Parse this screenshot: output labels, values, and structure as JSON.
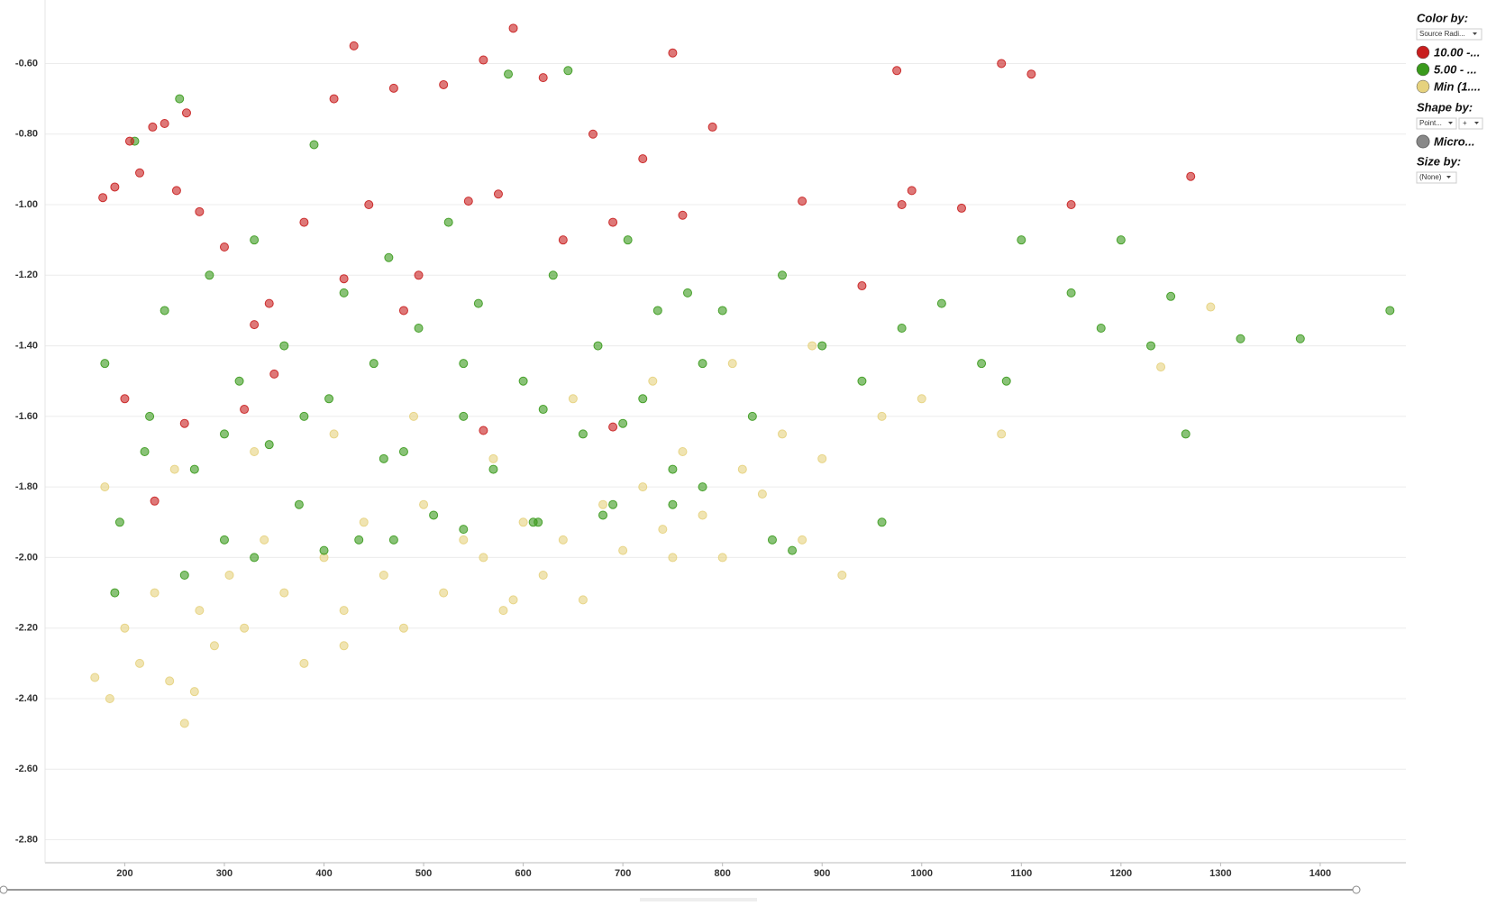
{
  "chart_data": {
    "type": "scatter",
    "xlim": [
      120,
      1486
    ],
    "xticks": [
      200,
      300,
      400,
      500,
      600,
      700,
      800,
      900,
      1000,
      1100,
      1200,
      1300,
      1400
    ],
    "ylim": [
      -2.865,
      -0.42
    ],
    "yticks": [
      {
        "value": -0.6,
        "label": "-0.60"
      },
      {
        "value": -0.8,
        "label": "-0.80"
      },
      {
        "value": -1.0,
        "label": "-1.00"
      },
      {
        "value": -1.2,
        "label": "-1.20"
      },
      {
        "value": -1.4,
        "label": "-1.40"
      },
      {
        "value": -1.6,
        "label": "-1.60"
      },
      {
        "value": -1.8,
        "label": "-1.80"
      },
      {
        "value": -2.0,
        "label": "-2.00"
      },
      {
        "value": -2.2,
        "label": "-2.20"
      },
      {
        "value": -2.4,
        "label": "-2.40"
      },
      {
        "value": -2.6,
        "label": "-2.60"
      },
      {
        "value": -2.8,
        "label": "-2.80"
      }
    ],
    "grid": true,
    "series": [
      {
        "name": "10.00 -...",
        "color": "#c81e1e",
        "x": [
          178,
          190,
          205,
          215,
          228,
          240,
          252,
          262,
          275,
          300,
          330,
          345,
          380,
          410,
          430,
          445,
          470,
          495,
          520,
          545,
          560,
          575,
          590,
          620,
          640,
          670,
          690,
          720,
          750,
          760,
          790,
          880,
          940,
          975,
          980,
          990,
          1040,
          1080,
          1110,
          1150,
          1270,
          200,
          260,
          350,
          420,
          480,
          560,
          690,
          230,
          320
        ],
        "values": [
          -0.98,
          -0.95,
          -0.82,
          -0.91,
          -0.78,
          -0.77,
          -0.96,
          -0.74,
          -1.02,
          -1.12,
          -1.34,
          -1.28,
          -1.05,
          -0.7,
          -0.55,
          -1.0,
          -0.67,
          -1.2,
          -0.66,
          -0.99,
          -0.59,
          -0.97,
          -0.5,
          -0.64,
          -1.1,
          -0.8,
          -1.05,
          -0.87,
          -0.57,
          -1.03,
          -0.78,
          -0.99,
          -1.23,
          -0.62,
          -1.0,
          -0.96,
          -1.01,
          -0.6,
          -0.63,
          -1.0,
          -0.92,
          -1.55,
          -1.62,
          -1.48,
          -1.21,
          -1.3,
          -1.64,
          -1.63,
          -1.84,
          -1.58
        ]
      },
      {
        "name": "5.00 - ...",
        "color": "#3a9a1c",
        "x": [
          180,
          195,
          210,
          225,
          240,
          255,
          270,
          285,
          300,
          315,
          330,
          345,
          360,
          375,
          390,
          405,
          420,
          435,
          450,
          465,
          480,
          495,
          510,
          525,
          540,
          555,
          570,
          585,
          600,
          615,
          630,
          645,
          660,
          675,
          690,
          705,
          720,
          735,
          750,
          765,
          780,
          800,
          830,
          860,
          900,
          940,
          980,
          1020,
          1060,
          1100,
          1150,
          1200,
          1250,
          1320,
          1380,
          1470,
          1085,
          1230,
          1265,
          1180,
          190,
          260,
          330,
          400,
          470,
          540,
          610,
          680,
          750,
          850,
          220,
          300,
          380,
          460,
          540,
          620,
          700,
          780,
          870,
          960
        ],
        "values": [
          -1.45,
          -1.9,
          -0.82,
          -1.6,
          -1.3,
          -0.7,
          -1.75,
          -1.2,
          -1.95,
          -1.5,
          -1.1,
          -1.68,
          -1.4,
          -1.85,
          -0.83,
          -1.55,
          -1.25,
          -1.95,
          -1.45,
          -1.15,
          -1.7,
          -1.35,
          -1.88,
          -1.05,
          -1.6,
          -1.28,
          -1.75,
          -0.63,
          -1.5,
          -1.9,
          -1.2,
          -0.62,
          -1.65,
          -1.4,
          -1.85,
          -1.1,
          -1.55,
          -1.3,
          -1.75,
          -1.25,
          -1.45,
          -1.3,
          -1.6,
          -1.2,
          -1.4,
          -1.5,
          -1.35,
          -1.28,
          -1.45,
          -1.1,
          -1.25,
          -1.1,
          -1.26,
          -1.38,
          -1.38,
          -1.3,
          -1.5,
          -1.4,
          -1.65,
          -1.35,
          -2.1,
          -2.05,
          -2.0,
          -1.98,
          -1.95,
          -1.92,
          -1.9,
          -1.88,
          -1.85,
          -1.95,
          -1.7,
          -1.65,
          -1.6,
          -1.72,
          -1.45,
          -1.58,
          -1.62,
          -1.8,
          -1.98,
          -1.9
        ]
      },
      {
        "name": "Min (1....",
        "color": "#e6d27e",
        "x": [
          170,
          185,
          200,
          215,
          230,
          245,
          260,
          275,
          290,
          305,
          320,
          340,
          360,
          380,
          400,
          420,
          440,
          460,
          480,
          500,
          520,
          540,
          560,
          580,
          600,
          620,
          640,
          660,
          680,
          700,
          720,
          740,
          760,
          780,
          800,
          820,
          840,
          860,
          880,
          900,
          920,
          960,
          1000,
          1080,
          1240,
          1290,
          180,
          250,
          330,
          410,
          490,
          570,
          650,
          730,
          810,
          890,
          270,
          420,
          590,
          750
        ],
        "values": [
          -2.34,
          -2.4,
          -2.2,
          -2.3,
          -2.1,
          -2.35,
          -2.47,
          -2.15,
          -2.25,
          -2.05,
          -2.2,
          -1.95,
          -2.1,
          -2.3,
          -2.0,
          -2.15,
          -1.9,
          -2.05,
          -2.2,
          -1.85,
          -2.1,
          -1.95,
          -2.0,
          -2.15,
          -1.9,
          -2.05,
          -1.95,
          -2.12,
          -1.85,
          -1.98,
          -1.8,
          -1.92,
          -1.7,
          -1.88,
          -2.0,
          -1.75,
          -1.82,
          -1.65,
          -1.95,
          -1.72,
          -2.05,
          -1.6,
          -1.55,
          -1.65,
          -1.46,
          -1.29,
          -1.8,
          -1.75,
          -1.7,
          -1.65,
          -1.6,
          -1.72,
          -1.55,
          -1.5,
          -1.45,
          -1.4,
          -2.38,
          -2.25,
          -2.12,
          -2.0
        ]
      }
    ]
  },
  "legend_panel": {
    "color_by": "Color by:",
    "color_by_dropdown": "Source Radi...",
    "shape_by": "Shape by:",
    "shape_by_dropdown": "Point...",
    "shape_by_extra": "+",
    "shape_entry": "Micro...",
    "size_by": "Size by:",
    "size_by_dropdown": "(None)"
  }
}
